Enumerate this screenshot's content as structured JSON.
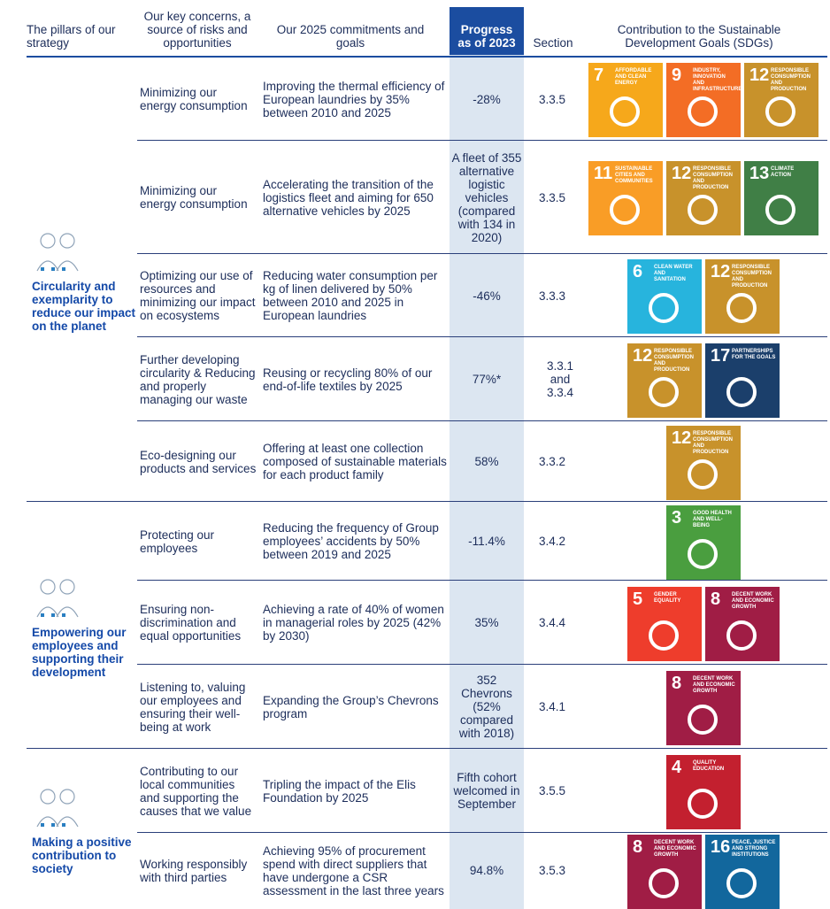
{
  "header": {
    "pillars": "The pillars of our strategy",
    "concerns": "Our key concerns, a source of risks and opportunities",
    "goals": "Our 2025 commitments and goals",
    "progress": "Progress as of 2023",
    "section": "Section",
    "sdgs": "Contribution to the Sustainable Development Goals (SDGs)"
  },
  "pillars": [
    {
      "title": "Circularity and exemplarity to reduce our impact on the planet",
      "rows": [
        {
          "concern": "Minimizing our energy consumption",
          "goal": "Improving the thermal efficiency of European laundries by 35% between 2010 and 2025",
          "progress": "-28%",
          "section": "3.3.5",
          "sdgs": [
            {
              "number": "7",
              "label": "Affordable and clean energy",
              "color": "#f6a81b"
            },
            {
              "number": "9",
              "label": "Industry, innovation and infrastructure",
              "color": "#f36d25"
            },
            {
              "number": "12",
              "label": "Responsible consumption and production",
              "color": "#c8922b"
            }
          ]
        },
        {
          "concern": "Minimizing our energy consumption",
          "goal": "Accelerating the transition of the logistics fleet and aiming for 650 alternative vehicles by 2025",
          "progress": "A fleet of 355 alternative logistic vehicles (compared with 134 in 2020)",
          "section": "3.3.5",
          "sdgs": [
            {
              "number": "11",
              "label": "Sustainable cities and communities",
              "color": "#f99d26"
            },
            {
              "number": "12",
              "label": "Responsible consumption and production",
              "color": "#c8922b"
            },
            {
              "number": "13",
              "label": "Climate action",
              "color": "#407f46"
            }
          ]
        },
        {
          "concern": "Optimizing our use of resources and minimizing our impact on ecosystems",
          "goal": "Reducing water consumption per kg of linen delivered by 50% between 2010 and 2025 in European laundries",
          "progress": "-46%",
          "section": "3.3.3",
          "sdgs": [
            {
              "number": "6",
              "label": "Clean water and sanitation",
              "color": "#27b4dd"
            },
            {
              "number": "12",
              "label": "Responsible consumption and production",
              "color": "#c8922b"
            }
          ]
        },
        {
          "concern": "Further developing circularity & Reducing and properly managing our waste",
          "goal": "Reusing or recycling 80% of our end-of-life textiles by 2025",
          "progress": "77%*",
          "section": "3.3.1 and 3.3.4",
          "sdgs": [
            {
              "number": "12",
              "label": "Responsible consumption and production",
              "color": "#c8922b"
            },
            {
              "number": "17",
              "label": "Partnerships for the goals",
              "color": "#1b3f6b"
            }
          ]
        },
        {
          "concern": "Eco-designing our products and services",
          "goal": "Offering at least one collection composed of sustainable materials for each product family",
          "progress": "58%",
          "section": "3.3.2",
          "sdgs": [
            {
              "number": "12",
              "label": "Responsible consumption and production",
              "color": "#c8922b"
            }
          ]
        }
      ]
    },
    {
      "title": "Empowering our employees and supporting their development",
      "rows": [
        {
          "concern": "Protecting our employees",
          "goal": "Reducing the frequency of Group employees’ accidents by 50% between 2019 and 2025",
          "progress": "-11.4%",
          "section": "3.4.2",
          "sdgs": [
            {
              "number": "3",
              "label": "Good health and well-being",
              "color": "#4a9e3f"
            }
          ]
        },
        {
          "concern": "Ensuring non-discrimination and equal opportunities",
          "goal": "Achieving a rate of 40% of women in managerial roles by 2025 (42% by 2030)",
          "progress": "35%",
          "section": "3.4.4",
          "sdgs": [
            {
              "number": "5",
              "label": "Gender equality",
              "color": "#ee3d2c"
            },
            {
              "number": "8",
              "label": "Decent work and economic growth",
              "color": "#a01d45"
            }
          ]
        },
        {
          "concern": "Listening to, valuing our employees and ensuring their well-being at work",
          "goal": "Expanding the Group’s Chevrons program",
          "progress": "352 Chevrons (52% compared with 2018)",
          "section": "3.4.1",
          "sdgs": [
            {
              "number": "8",
              "label": "Decent work and economic growth",
              "color": "#a01d45"
            }
          ]
        }
      ]
    },
    {
      "title": "Making a positive contribution to society",
      "rows": [
        {
          "concern": "Contributing to our local communities and supporting the causes that we value",
          "goal": "Tripling the impact of the Elis Foundation by 2025",
          "progress": "Fifth cohort welcomed in September",
          "section": "3.5.5",
          "sdgs": [
            {
              "number": "4",
              "label": "Quality education",
              "color": "#c3202f"
            }
          ]
        },
        {
          "concern": "Working responsibly with third parties",
          "goal": "Achieving 95% of procurement spend with direct suppliers that have undergone a CSR assessment in the last three years",
          "progress": "94.8%",
          "section": "3.5.3",
          "sdgs": [
            {
              "number": "8",
              "label": "Decent work and economic growth",
              "color": "#a01d45"
            },
            {
              "number": "16",
              "label": "Peace, justice and strong institutions",
              "color": "#12679d"
            }
          ]
        }
      ]
    }
  ]
}
